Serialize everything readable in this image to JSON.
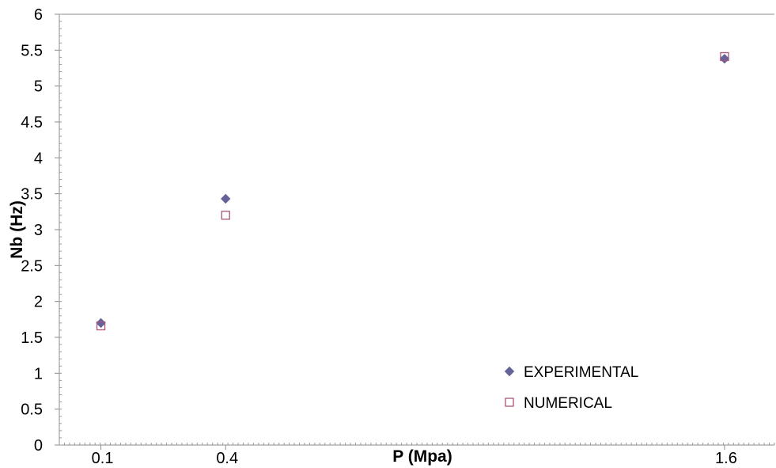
{
  "chart_data": {
    "type": "scatter",
    "title": "",
    "xlabel": "P (Mpa)",
    "ylabel": "Nb (Hz)",
    "xlim": [
      0,
      1.72
    ],
    "ylim": [
      0,
      6
    ],
    "x_ticks": [
      0.1,
      0.4,
      1.6
    ],
    "x_tick_labels": [
      "0.1",
      "0.4",
      "1.6"
    ],
    "y_ticks": [
      0,
      0.5,
      1,
      1.5,
      2,
      2.5,
      3,
      3.5,
      4,
      4.5,
      5,
      5.5,
      6
    ],
    "y_tick_labels": [
      "0",
      "0.5",
      "1",
      "1.5",
      "2",
      "2.5",
      "3",
      "3.5",
      "4",
      "4.5",
      "5",
      "5.5",
      "6"
    ],
    "grid": false,
    "legend_position": "bottom-right",
    "series": [
      {
        "name": "EXPERIMENTAL",
        "marker": "diamond",
        "color": "#64639a",
        "x": [
          0.1,
          0.4,
          1.6
        ],
        "y": [
          1.7,
          3.43,
          5.38
        ]
      },
      {
        "name": "NUMERICAL",
        "marker": "square-open",
        "color": "#a8557a",
        "x": [
          0.1,
          0.4,
          1.6
        ],
        "y": [
          1.66,
          3.2,
          5.41
        ]
      }
    ]
  }
}
